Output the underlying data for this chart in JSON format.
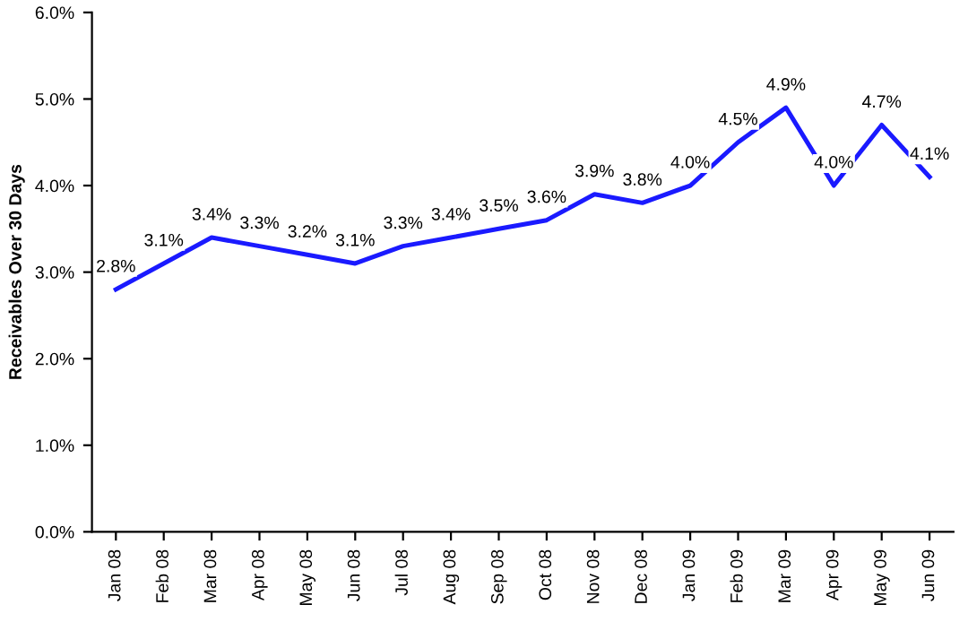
{
  "chart_data": {
    "type": "line",
    "ylabel": "Receivables Over 30 Days",
    "categories": [
      "Jan 08",
      "Feb 08",
      "Mar 08",
      "Apr 08",
      "May 08",
      "Jun 08",
      "Jul 08",
      "Aug 08",
      "Sep 08",
      "Oct 08",
      "Nov 08",
      "Dec 08",
      "Jan 09",
      "Feb 09",
      "Mar 09",
      "Apr 09",
      "May 09",
      "Jun 09"
    ],
    "series": [
      {
        "color": "#1a1aff",
        "values": [
          2.8,
          3.1,
          3.4,
          3.3,
          3.2,
          3.1,
          3.3,
          3.4,
          3.5,
          3.6,
          3.9,
          3.8,
          4.0,
          4.5,
          4.9,
          4.0,
          4.7,
          4.1
        ],
        "value_labels": [
          "2.8%",
          "3.1%",
          "3.4%",
          "3.3%",
          "3.2%",
          "3.1%",
          "3.3%",
          "3.4%",
          "3.5%",
          "3.6%",
          "3.9%",
          "3.8%",
          "4.0%",
          "4.5%",
          "4.9%",
          "4.0%",
          "4.7%",
          "4.1%"
        ]
      }
    ],
    "ylim": [
      0,
      6
    ],
    "yticks": [
      {
        "value": 0,
        "label": "0.0%"
      },
      {
        "value": 1,
        "label": "1.0%"
      },
      {
        "value": 2,
        "label": "2.0%"
      },
      {
        "value": 3,
        "label": "3.0%"
      },
      {
        "value": 4,
        "label": "4.0%"
      },
      {
        "value": 5,
        "label": "5.0%"
      },
      {
        "value": 6,
        "label": "6.0%"
      }
    ],
    "grid": false,
    "marker": "none",
    "line_style": "solid"
  }
}
